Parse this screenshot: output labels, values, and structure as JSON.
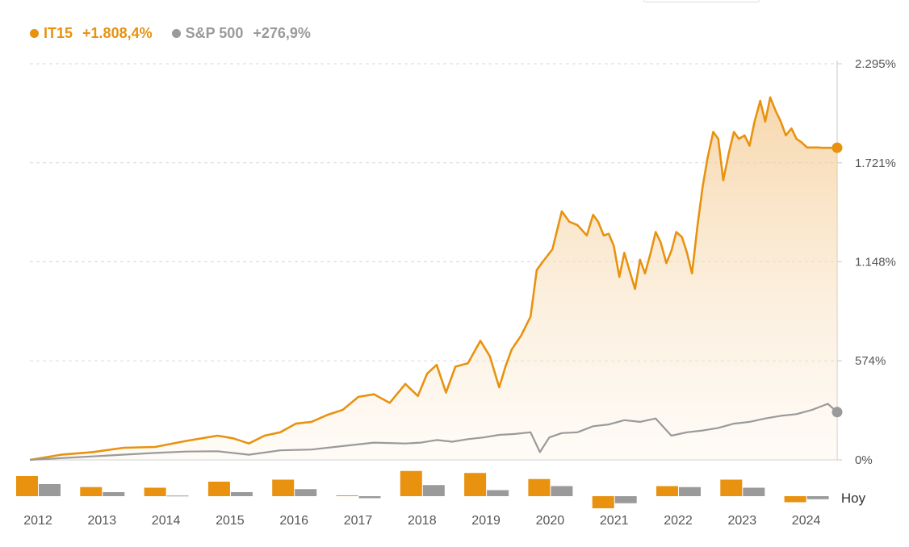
{
  "legend": {
    "series": [
      {
        "name": "IT15",
        "change": "+1.808,4%",
        "color": "#e8920f"
      },
      {
        "name": "S&P 500",
        "change": "+276,9%",
        "color": "#9a9a9a"
      }
    ]
  },
  "chart_data": {
    "type": "line",
    "ytick_labels": [
      "2.295%",
      "1.721%",
      "1.148%",
      "574%",
      "0%"
    ],
    "ytick_values": [
      2295,
      1721,
      1148,
      574,
      0
    ],
    "ylim": [
      0,
      2295
    ],
    "xlim": [
      2012.0,
      2024.9
    ],
    "grid": true,
    "area_fill": "IT15",
    "series": [
      {
        "name": "IT15",
        "color": "#e8920f",
        "x": [
          2012.0,
          2012.5,
          2013.0,
          2013.5,
          2014.0,
          2014.5,
          2015.0,
          2015.25,
          2015.5,
          2015.75,
          2016.0,
          2016.25,
          2016.5,
          2016.75,
          2017.0,
          2017.25,
          2017.5,
          2017.75,
          2018.0,
          2018.2,
          2018.35,
          2018.5,
          2018.65,
          2018.8,
          2019.0,
          2019.2,
          2019.35,
          2019.5,
          2019.6,
          2019.7,
          2019.85,
          2020.0,
          2020.1,
          2020.2,
          2020.35,
          2020.5,
          2020.62,
          2020.75,
          2020.9,
          2021.0,
          2021.08,
          2021.17,
          2021.25,
          2021.33,
          2021.42,
          2021.5,
          2021.58,
          2021.67,
          2021.75,
          2021.83,
          2021.92,
          2022.0,
          2022.08,
          2022.17,
          2022.25,
          2022.33,
          2022.42,
          2022.5,
          2022.58,
          2022.67,
          2022.75,
          2022.83,
          2022.92,
          2023.0,
          2023.08,
          2023.17,
          2023.25,
          2023.33,
          2023.42,
          2023.5,
          2023.58,
          2023.67,
          2023.75,
          2023.83,
          2023.92,
          2024.0,
          2024.08,
          2024.17,
          2024.25,
          2024.33,
          2024.42,
          2024.5,
          2024.58,
          2024.67,
          2024.75,
          2024.83,
          2024.9
        ],
        "y": [
          0,
          30,
          45,
          70,
          75,
          110,
          140,
          125,
          95,
          140,
          160,
          210,
          220,
          260,
          290,
          365,
          380,
          330,
          440,
          370,
          500,
          550,
          390,
          540,
          560,
          690,
          600,
          420,
          540,
          640,
          720,
          830,
          1100,
          1150,
          1220,
          1440,
          1380,
          1360,
          1300,
          1420,
          1380,
          1300,
          1310,
          1240,
          1060,
          1200,
          1100,
          990,
          1160,
          1080,
          1200,
          1320,
          1260,
          1140,
          1210,
          1320,
          1290,
          1200,
          1080,
          1360,
          1580,
          1750,
          1900,
          1860,
          1620,
          1780,
          1900,
          1860,
          1880,
          1820,
          1960,
          2080,
          1960,
          2100,
          2020,
          1960,
          1880,
          1920,
          1860,
          1840,
          1810,
          1810,
          1810,
          1808,
          1808,
          1808,
          1808.4
        ]
      },
      {
        "name": "S&P 500",
        "color": "#9a9a9a",
        "x": [
          2012.0,
          2013.0,
          2014.0,
          2014.5,
          2015.0,
          2015.5,
          2016.0,
          2016.5,
          2017.0,
          2017.5,
          2018.0,
          2018.25,
          2018.5,
          2018.75,
          2019.0,
          2019.25,
          2019.5,
          2019.75,
          2020.0,
          2020.15,
          2020.3,
          2020.5,
          2020.75,
          2021.0,
          2021.25,
          2021.5,
          2021.75,
          2022.0,
          2022.25,
          2022.5,
          2022.75,
          2023.0,
          2023.25,
          2023.5,
          2023.75,
          2024.0,
          2024.25,
          2024.5,
          2024.75,
          2024.9
        ],
        "y": [
          0,
          20,
          40,
          48,
          50,
          30,
          55,
          60,
          80,
          100,
          95,
          100,
          115,
          105,
          120,
          130,
          145,
          150,
          160,
          45,
          130,
          155,
          160,
          195,
          205,
          230,
          220,
          240,
          140,
          160,
          170,
          185,
          210,
          220,
          240,
          255,
          265,
          290,
          325,
          276.9
        ]
      }
    ],
    "annual_bars": {
      "categories": [
        "2012",
        "2013",
        "2014",
        "2015",
        "2016",
        "2017",
        "2018",
        "2019",
        "2020",
        "2021",
        "2022",
        "2023",
        "2024"
      ],
      "it15": [
        10.0,
        4.5,
        4.2,
        7.2,
        8.2,
        0.4,
        12.5,
        11.5,
        8.5,
        -6.0,
        5.0,
        8.2,
        -3.0
      ],
      "sp500": [
        6.0,
        2.0,
        0.3,
        2.0,
        3.5,
        -1.0,
        5.5,
        3.0,
        5.0,
        -3.5,
        4.5,
        4.2,
        -1.5
      ],
      "today_label": "Hoy"
    }
  }
}
